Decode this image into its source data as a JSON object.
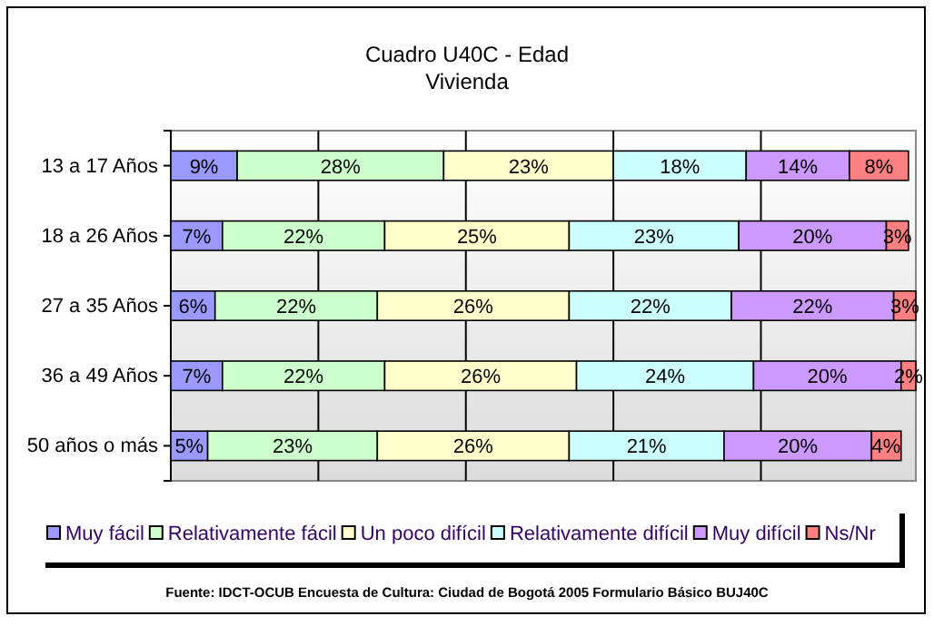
{
  "chart_data": {
    "type": "bar",
    "orientation": "horizontal",
    "stacked": true,
    "title": "Cuadro U40C - Edad",
    "subtitle": "Vivienda",
    "categories": [
      "13 a 17 Años",
      "18 a 26 Años",
      "27 a 35 Años",
      "36 a 49 Años",
      "50 años o más"
    ],
    "series": [
      {
        "name": "Muy fácil",
        "color": "#9999ff",
        "values": [
          9,
          7,
          6,
          7,
          5
        ],
        "value_labels": [
          "9%",
          "7%",
          "6%",
          "7%",
          "5%"
        ]
      },
      {
        "name": "Relativamente fácil",
        "color": "#ccffcc",
        "values": [
          28,
          22,
          22,
          22,
          23
        ],
        "value_labels": [
          "28%",
          "22%",
          "22%",
          "22%",
          "23%"
        ]
      },
      {
        "name": "Un poco difícil",
        "color": "#ffffcc",
        "values": [
          23,
          25,
          26,
          26,
          26
        ],
        "value_labels": [
          "23%",
          "25%",
          "26%",
          "26%",
          "26%"
        ]
      },
      {
        "name": "Relativamente difícil",
        "color": "#ccffff",
        "values": [
          18,
          23,
          22,
          24,
          21
        ],
        "value_labels": [
          "18%",
          "23%",
          "22%",
          "24%",
          "21%"
        ]
      },
      {
        "name": "Muy difícil",
        "color": "#cc99ff",
        "values": [
          14,
          20,
          22,
          20,
          20
        ],
        "value_labels": [
          "14%",
          "20%",
          "22%",
          "20%",
          "20%"
        ]
      },
      {
        "name": "Ns/Nr",
        "color": "#ff8080",
        "values": [
          8,
          3,
          3,
          2,
          4
        ],
        "value_labels": [
          "8%",
          "3%",
          "3%",
          "2%",
          "4%"
        ]
      }
    ],
    "xlim": [
      0,
      101
    ],
    "xticks": [
      {
        "value": 20,
        "label": null
      },
      {
        "value": 40,
        "label": null
      },
      {
        "value": 60,
        "label": null
      },
      {
        "value": 80,
        "label": null
      }
    ],
    "grid": "x",
    "tick_labels": "y",
    "legend": "bottom",
    "annotations": [
      "Fuente: IDCT-OCUB Encuesta de Cultura: Ciudad de Bogotá 2005 Formulario Básico BUJ40C"
    ]
  }
}
